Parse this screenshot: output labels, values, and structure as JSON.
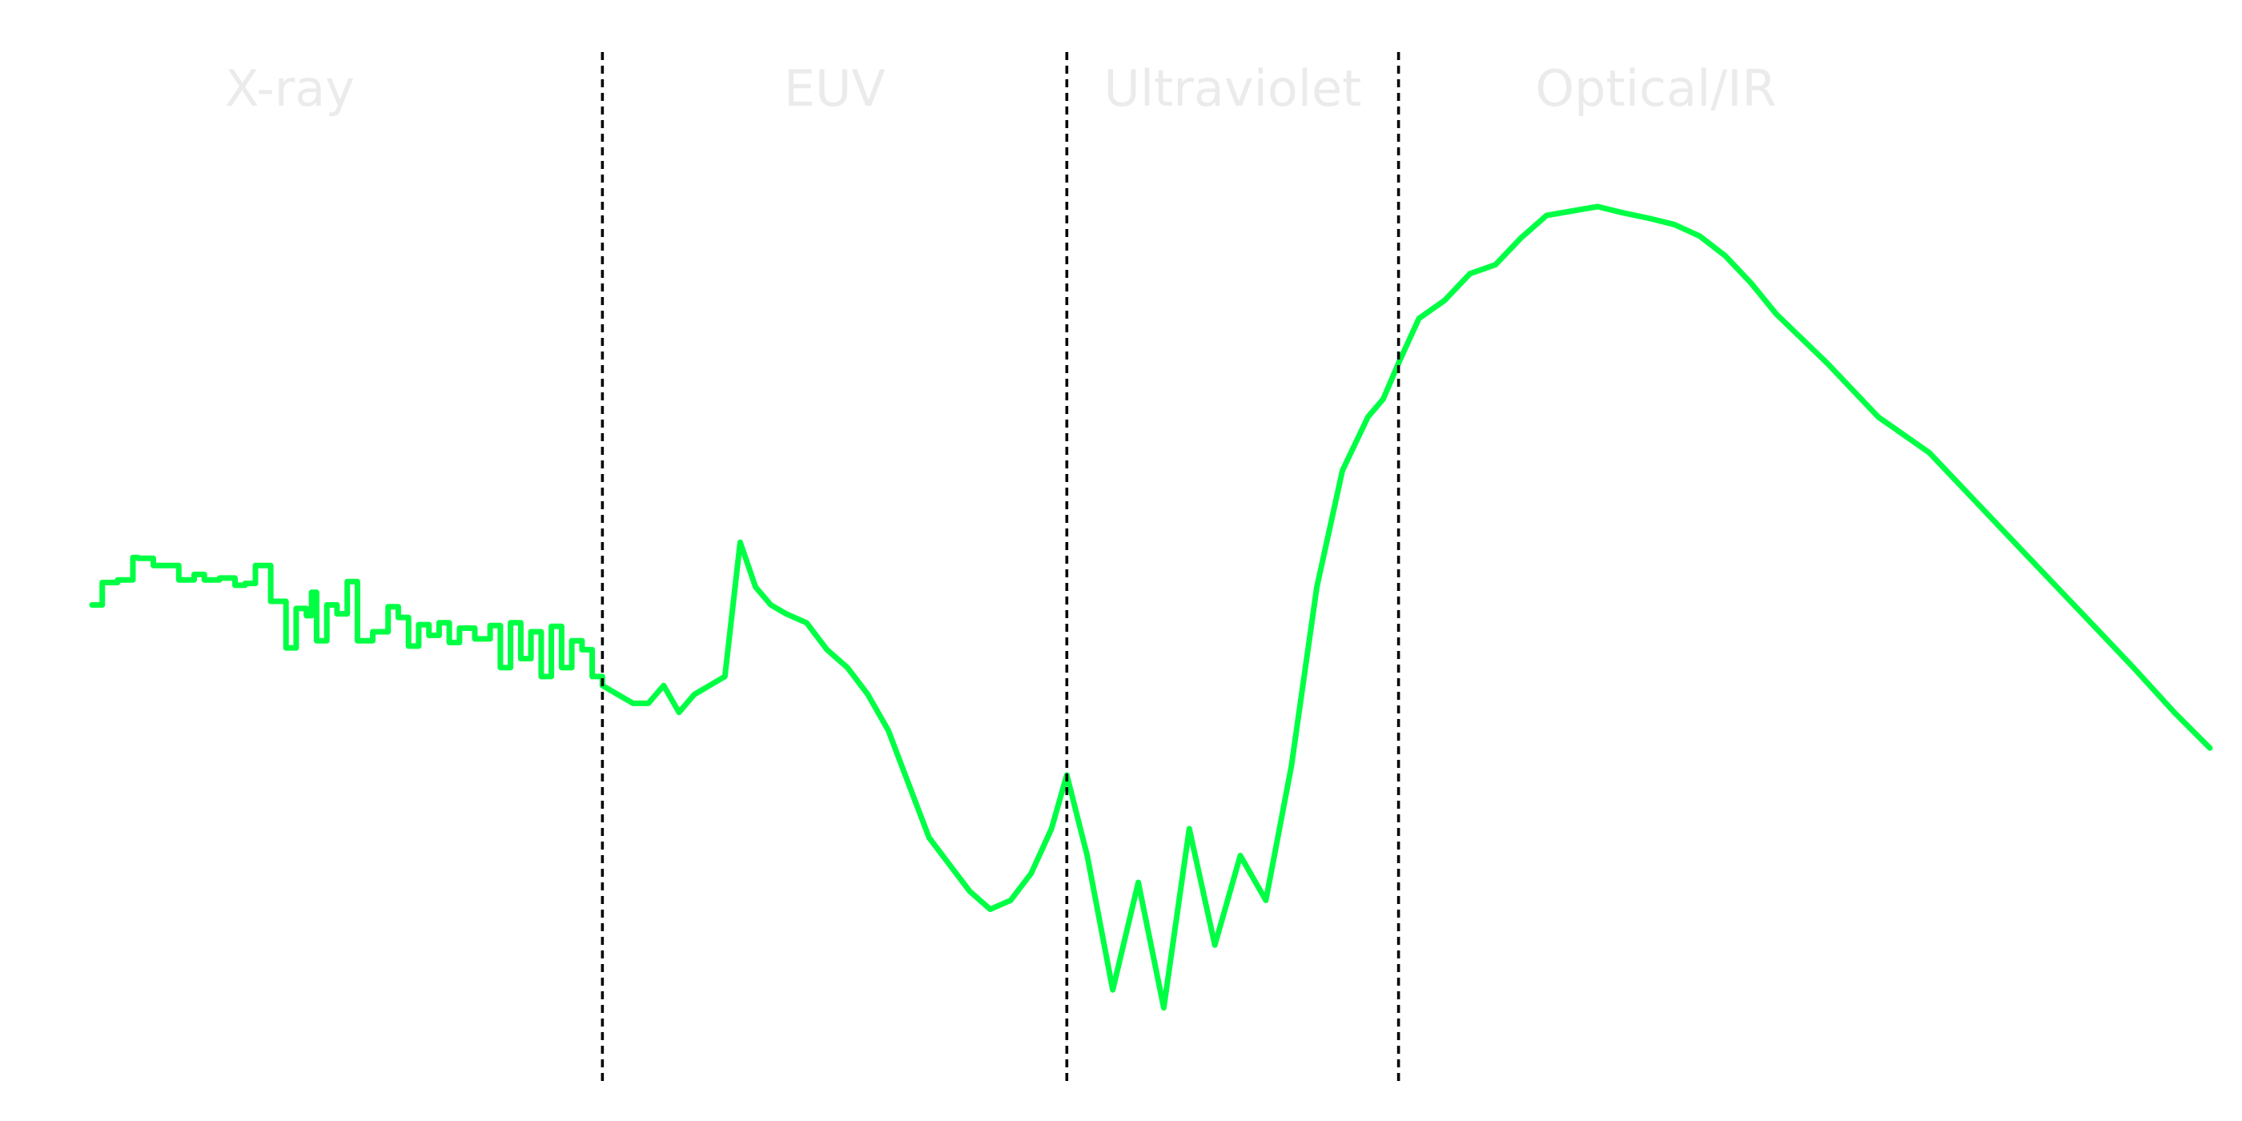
{
  "chart_data": {
    "type": "line",
    "title": "",
    "xlabel": "",
    "ylabel": "",
    "axes_visible": false,
    "grid": false,
    "legend": "none",
    "x_scale": "log",
    "y_scale": "log",
    "regions": [
      {
        "label": "X-ray",
        "xmin": 0.0,
        "xmax": 1.0
      },
      {
        "label": "EUV",
        "xmin": 1.0,
        "xmax": 1.91
      },
      {
        "label": "Ultraviolet",
        "xmin": 1.91,
        "xmax": 2.56
      },
      {
        "label": "Optical/IR",
        "xmin": 2.56,
        "xmax": 4.15
      }
    ],
    "dividers": [
      1.0,
      1.91,
      2.56
    ],
    "series": [
      {
        "color": "#00ff44",
        "x": [
          0.0,
          0.02,
          0.05,
          0.08,
          0.09,
          0.12,
          0.17,
          0.2,
          0.22,
          0.25,
          0.28,
          0.3,
          0.32,
          0.35,
          0.38,
          0.4,
          0.42,
          0.43,
          0.44,
          0.46,
          0.48,
          0.5,
          0.52,
          0.55,
          0.58,
          0.6,
          0.62,
          0.64,
          0.66,
          0.68,
          0.7,
          0.72,
          0.75,
          0.78,
          0.8,
          0.82,
          0.84,
          0.86,
          0.88,
          0.9,
          0.92,
          0.94,
          0.96,
          0.98,
          1.0,
          1.03,
          1.06,
          1.09,
          1.12,
          1.15,
          1.18,
          1.21,
          1.24,
          1.27,
          1.3,
          1.33,
          1.36,
          1.4,
          1.44,
          1.48,
          1.52,
          1.56,
          1.6,
          1.64,
          1.68,
          1.72,
          1.76,
          1.8,
          1.84,
          1.88,
          1.91,
          1.95,
          2.0,
          2.05,
          2.1,
          2.15,
          2.2,
          2.25,
          2.3,
          2.35,
          2.4,
          2.45,
          2.5,
          2.53,
          2.56,
          2.6,
          2.65,
          2.7,
          2.75,
          2.8,
          2.85,
          2.9,
          2.95,
          3.0,
          3.05,
          3.1,
          3.15,
          3.2,
          3.25,
          3.3,
          3.4,
          3.5,
          3.6,
          3.7,
          3.8,
          3.9,
          4.0,
          4.08,
          4.15
        ],
        "y": [
          0.53,
          0.555,
          0.558,
          0.583,
          0.582,
          0.574,
          0.558,
          0.564,
          0.558,
          0.56,
          0.552,
          0.554,
          0.574,
          0.534,
          0.482,
          0.526,
          0.518,
          0.544,
          0.49,
          0.53,
          0.52,
          0.556,
          0.49,
          0.5,
          0.528,
          0.516,
          0.484,
          0.508,
          0.496,
          0.51,
          0.488,
          0.504,
          0.492,
          0.507,
          0.46,
          0.51,
          0.47,
          0.5,
          0.45,
          0.506,
          0.46,
          0.49,
          0.48,
          0.45,
          0.44,
          0.43,
          0.42,
          0.42,
          0.44,
          0.41,
          0.43,
          0.44,
          0.45,
          0.6,
          0.55,
          0.53,
          0.52,
          0.51,
          0.48,
          0.46,
          0.43,
          0.39,
          0.33,
          0.27,
          0.24,
          0.21,
          0.19,
          0.2,
          0.23,
          0.28,
          0.34,
          0.25,
          0.1,
          0.22,
          0.08,
          0.28,
          0.15,
          0.25,
          0.2,
          0.35,
          0.55,
          0.68,
          0.74,
          0.76,
          0.8,
          0.85,
          0.87,
          0.9,
          0.91,
          0.94,
          0.965,
          0.97,
          0.975,
          0.968,
          0.962,
          0.955,
          0.942,
          0.92,
          0.89,
          0.855,
          0.8,
          0.74,
          0.7,
          0.64,
          0.58,
          0.52,
          0.46,
          0.41,
          0.37
        ]
      }
    ]
  }
}
